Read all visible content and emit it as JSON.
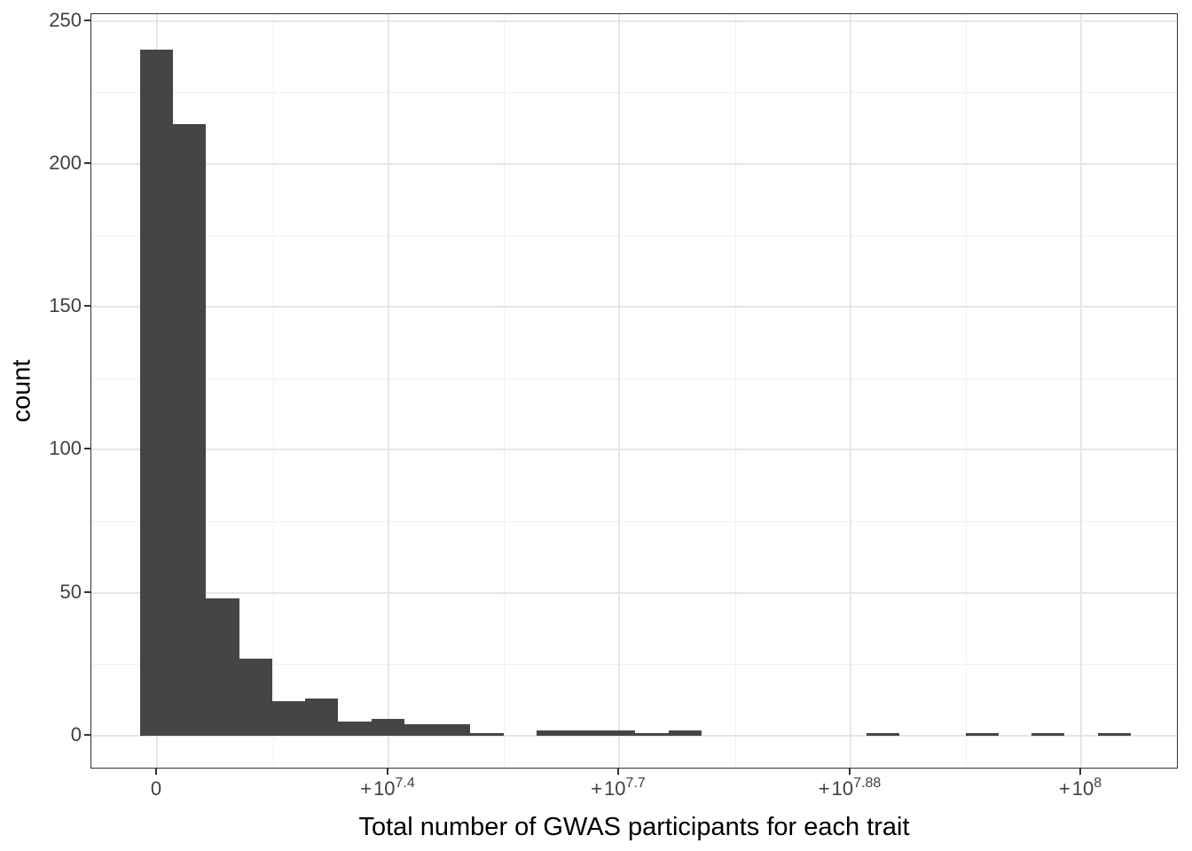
{
  "chart_data": {
    "type": "histogram",
    "title": "",
    "xlabel": "Total number of GWAS participants for each trait",
    "ylabel": "count",
    "bins": 30,
    "counts": [
      240,
      214,
      48,
      27,
      12,
      13,
      5,
      6,
      4,
      4,
      1,
      0,
      2,
      2,
      2,
      1,
      2,
      0,
      0,
      0,
      0,
      0,
      1,
      0,
      0,
      1,
      0,
      1,
      0,
      1
    ],
    "y_axis": {
      "tick_values": [
        0,
        50,
        100,
        150,
        200,
        250
      ],
      "tick_labels": [
        "0",
        "50",
        "100",
        "150",
        "200",
        "250"
      ],
      "minor_tick_values": [
        25,
        75,
        125,
        175,
        225
      ],
      "ylim": [
        0,
        250
      ]
    },
    "x_axis": {
      "ticks": [
        {
          "label": "0"
        },
        {
          "plus": "+",
          "base": "10",
          "exp": "7.4"
        },
        {
          "plus": "+",
          "base": "10",
          "exp": "7.7"
        },
        {
          "plus": "+",
          "base": "10",
          "exp": "7.88"
        },
        {
          "plus": "+",
          "base": "10",
          "exp": "8"
        }
      ],
      "scale_note": "pseudo-log axis, major ticks equally spaced, grid on"
    },
    "legend": "none",
    "colors": {
      "bar_fill": "#454545",
      "panel_border": "#333333",
      "grid_major": "#e6e6e6",
      "grid_minor": "#f0f0f0",
      "tick_mark": "#333333",
      "tick_label": "#404040",
      "axis_title": "#000000",
      "background": "#ffffff"
    }
  }
}
